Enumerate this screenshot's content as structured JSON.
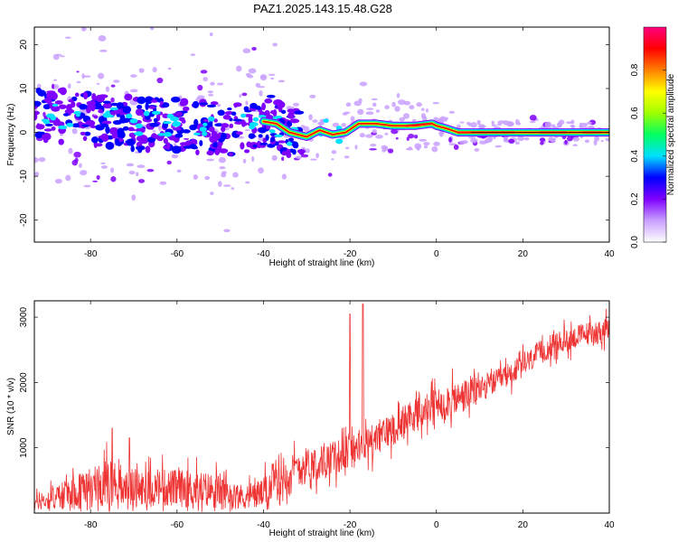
{
  "title": "PAZ1.2025.143.15.48.G28",
  "chart_data": [
    {
      "type": "heatmap",
      "xlabel": "Height of straight line (km)",
      "ylabel": "Frequency (Hz)",
      "xlim": [
        -93,
        40
      ],
      "ylim": [
        -25,
        24
      ],
      "xticks": [
        -80,
        -60,
        -40,
        -20,
        0,
        20,
        40
      ],
      "yticks": [
        -20,
        -10,
        0,
        10,
        20
      ],
      "grid": false,
      "ridge": [
        [
          -93,
          4
        ],
        [
          -88,
          4
        ],
        [
          -82,
          3
        ],
        [
          -75,
          2.5
        ],
        [
          -68,
          2
        ],
        [
          -60,
          1.5
        ],
        [
          -52,
          1
        ],
        [
          -45,
          1
        ],
        [
          -40,
          2.5
        ],
        [
          -37,
          2
        ],
        [
          -34,
          0
        ],
        [
          -30,
          -1
        ],
        [
          -27,
          0.5
        ],
        [
          -24,
          -0.5
        ],
        [
          -21,
          0
        ],
        [
          -18,
          2
        ],
        [
          -14,
          2
        ],
        [
          -10,
          1.5
        ],
        [
          -5,
          1.5
        ],
        [
          -1,
          2
        ],
        [
          0,
          1.5
        ],
        [
          2,
          1
        ],
        [
          5,
          0
        ],
        [
          10,
          0
        ],
        [
          20,
          0
        ],
        [
          30,
          0
        ],
        [
          40,
          0
        ]
      ],
      "colorbar": {
        "label": "Normalized spectral amplitude",
        "ticks": [
          0.0,
          0.2,
          0.4,
          0.6,
          0.8
        ],
        "range": [
          0,
          1
        ],
        "colors": [
          "#ffffff",
          "#c9a0ff",
          "#8000ff",
          "#0000ff",
          "#00e0ff",
          "#00ff60",
          "#a0ff00",
          "#ffff00",
          "#ff8000",
          "#ff0000",
          "#ff0080"
        ]
      }
    },
    {
      "type": "line",
      "xlabel": "Height of straight line (km)",
      "ylabel": "SNR (10 * v/v)",
      "xlim": [
        -93,
        40
      ],
      "ylim": [
        0,
        3250
      ],
      "xticks": [
        -80,
        -60,
        -40,
        -20,
        0,
        20,
        40
      ],
      "yticks": [
        1000,
        2000,
        3000
      ],
      "color": "#ee3333",
      "grid": false,
      "trend": [
        [
          -93,
          150
        ],
        [
          -85,
          300
        ],
        [
          -78,
          420
        ],
        [
          -74,
          500
        ],
        [
          -70,
          380
        ],
        [
          -60,
          380
        ],
        [
          -50,
          350
        ],
        [
          -45,
          250
        ],
        [
          -40,
          300
        ],
        [
          -35,
          600
        ],
        [
          -30,
          750
        ],
        [
          -25,
          800
        ],
        [
          -20,
          950
        ],
        [
          -15,
          1100
        ],
        [
          -10,
          1300
        ],
        [
          -5,
          1500
        ],
        [
          0,
          1650
        ],
        [
          5,
          1750
        ],
        [
          10,
          1900
        ],
        [
          15,
          2050
        ],
        [
          20,
          2250
        ],
        [
          25,
          2500
        ],
        [
          30,
          2650
        ],
        [
          35,
          2750
        ],
        [
          40,
          2800
        ]
      ],
      "spikes": [
        [
          -20,
          3050
        ],
        [
          -17,
          3200
        ],
        [
          -75,
          1300
        ],
        [
          -71,
          1150
        ]
      ]
    }
  ]
}
